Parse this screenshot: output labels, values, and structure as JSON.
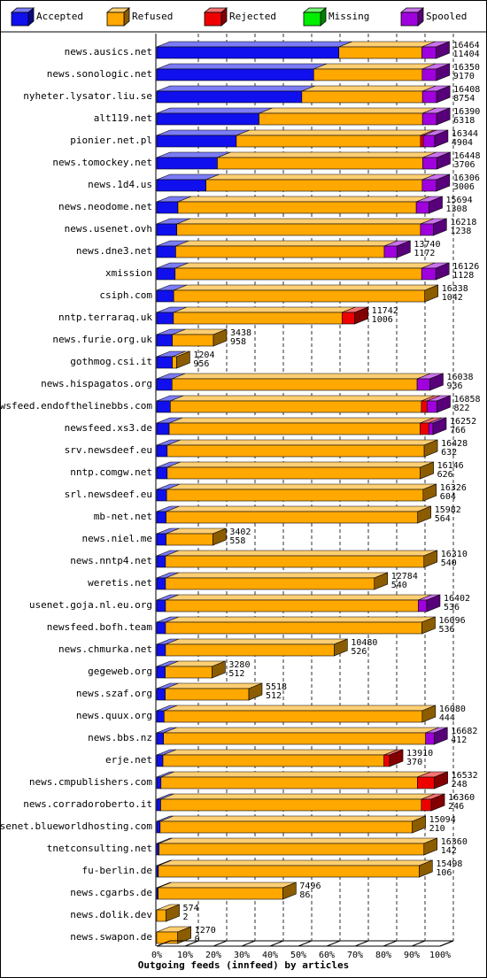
{
  "colors": {
    "Accepted": "#1010ee",
    "Refused": "#ffa800",
    "Rejected": "#ee0000",
    "Missing": "#00ee00",
    "Spooled": "#a000dd"
  },
  "legend": [
    {
      "label": "Accepted",
      "key": "Accepted"
    },
    {
      "label": "Refused",
      "key": "Refused"
    },
    {
      "label": "Rejected",
      "key": "Rejected"
    },
    {
      "label": "Missing",
      "key": "Missing"
    },
    {
      "label": "Spooled",
      "key": "Spooled"
    }
  ],
  "chart_data": {
    "type": "bar",
    "orientation": "horizontal",
    "stacked": true,
    "xlabel": "Outgoing feeds (innfeed) by articles",
    "xlim": [
      0,
      100
    ],
    "x_unit": "%",
    "ticks": [
      "0%",
      "10%",
      "20%",
      "30%",
      "40%",
      "50%",
      "60%",
      "70%",
      "80%",
      "90%",
      "100%"
    ],
    "grid": "vertical dashed",
    "legend_position": "top",
    "series": [
      "Accepted",
      "Refused",
      "Rejected",
      "Missing",
      "Spooled"
    ],
    "rows": [
      {
        "name": "news.ausics.net",
        "total": "16464",
        "accepted": "11404",
        "segments": [
          64.3,
          29.3,
          0,
          0,
          5.0
        ]
      },
      {
        "name": "news.sonologic.net",
        "total": "16350",
        "accepted": "9170",
        "segments": [
          55.4,
          38.3,
          0,
          0,
          5.0
        ]
      },
      {
        "name": "nyheter.lysator.liu.se",
        "total": "16408",
        "accepted": "8754",
        "segments": [
          51.2,
          42.6,
          0,
          0,
          5.0
        ]
      },
      {
        "name": "alt119.net",
        "total": "16390",
        "accepted": "6318",
        "segments": [
          36.1,
          57.7,
          0,
          0,
          5.0
        ]
      },
      {
        "name": "pionier.net.pl",
        "total": "16344",
        "accepted": "4904",
        "segments": [
          28.1,
          65.0,
          1.0,
          0,
          4.0
        ]
      },
      {
        "name": "news.tomockey.net",
        "total": "16448",
        "accepted": "3706",
        "segments": [
          21.4,
          72.5,
          0,
          0,
          5.0
        ]
      },
      {
        "name": "news.1d4.us",
        "total": "16306",
        "accepted": "3006",
        "segments": [
          17.4,
          76.3,
          0,
          0,
          5.0
        ]
      },
      {
        "name": "news.neodome.net",
        "total": "15694",
        "accepted": "1308",
        "segments": [
          7.5,
          84.1,
          0,
          0,
          4.5
        ]
      },
      {
        "name": "news.usenet.ovh",
        "total": "16218",
        "accepted": "1238",
        "segments": [
          7.1,
          86.0,
          0,
          0,
          4.5
        ]
      },
      {
        "name": "news.dne3.net",
        "total": "13740",
        "accepted": "1172",
        "segments": [
          6.7,
          73.6,
          0,
          0,
          4.5
        ]
      },
      {
        "name": "xmission",
        "total": "16126",
        "accepted": "1128",
        "segments": [
          6.5,
          87.0,
          0,
          0,
          5.0
        ]
      },
      {
        "name": "csiph.com",
        "total": "16338",
        "accepted": "1042",
        "segments": [
          6.0,
          88.6,
          0,
          0,
          0
        ]
      },
      {
        "name": "nntp.terraraq.uk",
        "total": "11742",
        "accepted": "1006",
        "segments": [
          5.9,
          59.5,
          4.5,
          0,
          0
        ]
      },
      {
        "name": "news.furie.org.uk",
        "total": "3438",
        "accepted": "958",
        "segments": [
          5.5,
          14.5,
          0,
          0,
          0
        ]
      },
      {
        "name": "gothmog.csi.it",
        "total": "1204",
        "accepted": "956",
        "segments": [
          5.5,
          1.5,
          0,
          0,
          0
        ]
      },
      {
        "name": "news.hispagatos.org",
        "total": "16038",
        "accepted": "936",
        "segments": [
          5.4,
          86.5,
          0,
          0,
          4.5
        ]
      },
      {
        "name": "newsfeed.endofthelinebbs.com",
        "total": "16858",
        "accepted": "822",
        "segments": [
          4.8,
          88.6,
          2.0,
          0,
          3.5
        ]
      },
      {
        "name": "newsfeed.xs3.de",
        "total": "16252",
        "accepted": "766",
        "segments": [
          4.4,
          88.6,
          3.0,
          0,
          1.5
        ]
      },
      {
        "name": "srv.newsdeef.eu",
        "total": "16428",
        "accepted": "632",
        "segments": [
          3.7,
          90.7,
          0,
          0,
          0
        ]
      },
      {
        "name": "nntp.comgw.net",
        "total": "16146",
        "accepted": "626",
        "segments": [
          3.7,
          89.3,
          0,
          0,
          0
        ]
      },
      {
        "name": "srl.newsdeef.eu",
        "total": "16326",
        "accepted": "604",
        "segments": [
          3.5,
          90.5,
          0,
          0,
          0
        ]
      },
      {
        "name": "mb-net.net",
        "total": "15982",
        "accepted": "564",
        "segments": [
          3.3,
          88.8,
          0,
          0,
          0
        ]
      },
      {
        "name": "news.niel.me",
        "total": "3402",
        "accepted": "558",
        "segments": [
          3.3,
          16.5,
          0,
          0,
          0
        ]
      },
      {
        "name": "news.nntp4.net",
        "total": "16310",
        "accepted": "540",
        "segments": [
          3.1,
          91.2,
          0,
          0,
          0
        ]
      },
      {
        "name": "weretis.net",
        "total": "12784",
        "accepted": "540",
        "segments": [
          3.1,
          73.7,
          0,
          0,
          0
        ]
      },
      {
        "name": "usenet.goja.nl.eu.org",
        "total": "16402",
        "accepted": "536",
        "segments": [
          3.1,
          89.2,
          0,
          0,
          3.0
        ]
      },
      {
        "name": "newsfeed.bofh.team",
        "total": "16096",
        "accepted": "536",
        "segments": [
          3.1,
          90.5,
          0,
          0,
          0
        ]
      },
      {
        "name": "news.chmurka.net",
        "total": "10480",
        "accepted": "526",
        "segments": [
          3.1,
          59.5,
          0,
          0,
          0
        ]
      },
      {
        "name": "gegeweb.org",
        "total": "3280",
        "accepted": "512",
        "segments": [
          3.0,
          16.5,
          0,
          0,
          0
        ]
      },
      {
        "name": "news.szaf.org",
        "total": "5518",
        "accepted": "512",
        "segments": [
          3.0,
          29.5,
          0,
          0,
          0
        ]
      },
      {
        "name": "news.quux.org",
        "total": "16080",
        "accepted": "444",
        "segments": [
          2.6,
          91.1,
          0,
          0,
          0
        ]
      },
      {
        "name": "news.bbs.nz",
        "total": "16682",
        "accepted": "412",
        "segments": [
          2.4,
          92.5,
          0,
          0,
          3.0
        ]
      },
      {
        "name": "erje.net",
        "total": "13910",
        "accepted": "370",
        "segments": [
          2.2,
          78.0,
          2.0,
          0,
          0
        ]
      },
      {
        "name": "news.cmpublishers.com",
        "total": "16532",
        "accepted": "248",
        "segments": [
          1.5,
          90.5,
          6.0,
          0,
          0
        ]
      },
      {
        "name": "news.corradoroberto.it",
        "total": "16360",
        "accepted": "246",
        "segments": [
          1.4,
          92.0,
          3.5,
          0,
          0
        ]
      },
      {
        "name": "usenet.blueworldhosting.com",
        "total": "15094",
        "accepted": "210",
        "segments": [
          1.2,
          89.0,
          0,
          0,
          0
        ]
      },
      {
        "name": "tnetconsulting.net",
        "total": "16360",
        "accepted": "142",
        "segments": [
          0.8,
          93.5,
          0,
          0,
          0
        ]
      },
      {
        "name": "fu-berlin.de",
        "total": "15498",
        "accepted": "106",
        "segments": [
          0.6,
          92.0,
          0,
          0,
          0
        ]
      },
      {
        "name": "news.cgarbs.de",
        "total": "7496",
        "accepted": "86",
        "segments": [
          0.5,
          44.0,
          0,
          0,
          0
        ]
      },
      {
        "name": "news.dolik.dev",
        "total": "574",
        "accepted": "2",
        "segments": [
          0,
          3.3,
          0,
          0,
          0
        ]
      },
      {
        "name": "news.swapon.de",
        "total": "1270",
        "accepted": "0",
        "segments": [
          0,
          7.4,
          0,
          0,
          0
        ]
      }
    ]
  }
}
